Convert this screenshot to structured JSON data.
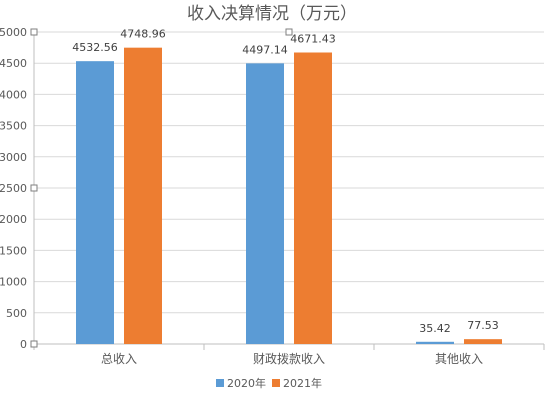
{
  "chart_data": {
    "type": "bar",
    "title": "收入决算情况（万元）",
    "categories": [
      "总收入",
      "财政拨款收入",
      "其他收入"
    ],
    "series": [
      {
        "name": "2020年",
        "color": "#5B9BD5",
        "values": [
          4532.56,
          4497.14,
          35.42
        ]
      },
      {
        "name": "2021年",
        "color": "#ED7D31",
        "values": [
          4748.96,
          4671.43,
          77.53
        ]
      }
    ],
    "ylim": [
      0,
      5000
    ],
    "yticks": [
      0,
      500,
      1000,
      1500,
      2000,
      2500,
      3000,
      3500,
      4000,
      4500,
      5000
    ],
    "grid": true,
    "legend": "bottom-center",
    "xlabel": "",
    "ylabel": ""
  }
}
